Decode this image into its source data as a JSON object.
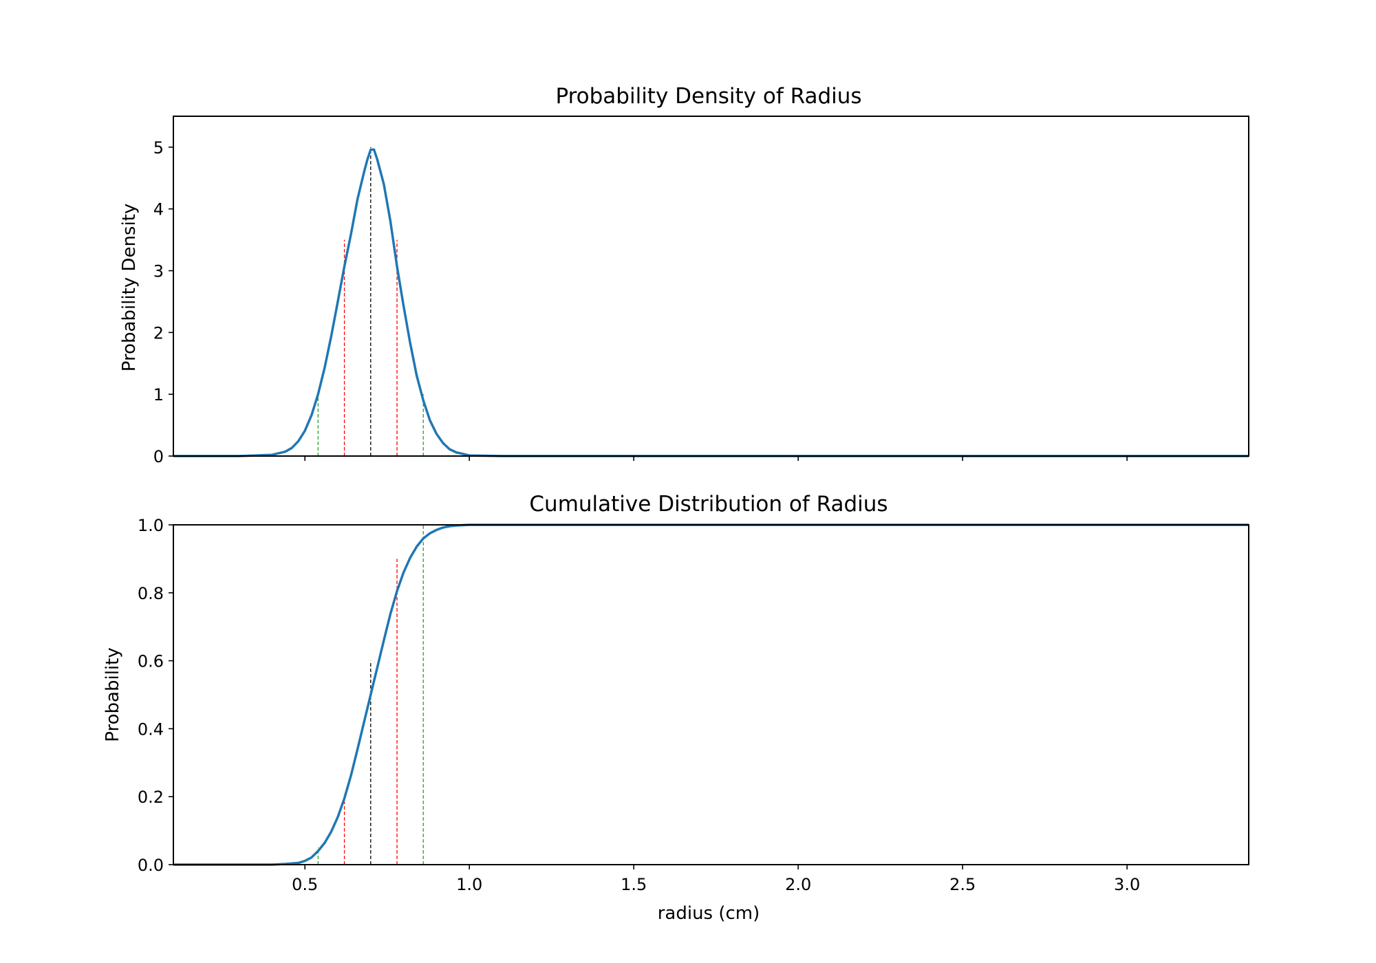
{
  "chart_data": [
    {
      "type": "line",
      "id": "pdf",
      "title": "Probability Density of Radius",
      "xlabel": "",
      "ylabel": "Probability Density",
      "xlim": [
        0.1,
        3.37
      ],
      "ylim": [
        0,
        5.5
      ],
      "xticks": [
        0.5,
        1.0,
        1.5,
        2.0,
        2.5,
        3.0
      ],
      "xtick_labels_visible": false,
      "yticks": [
        0,
        1,
        2,
        3,
        4,
        5
      ],
      "ytick_labels": [
        "0",
        "1",
        "2",
        "3",
        "4",
        "5"
      ],
      "grid": false,
      "series": [
        {
          "color": "#1f77b4",
          "x": [
            0.1,
            0.3,
            0.4,
            0.44,
            0.46,
            0.48,
            0.5,
            0.52,
            0.54,
            0.56,
            0.58,
            0.6,
            0.62,
            0.64,
            0.66,
            0.68,
            0.69,
            0.7,
            0.71,
            0.72,
            0.74,
            0.76,
            0.78,
            0.8,
            0.82,
            0.84,
            0.86,
            0.88,
            0.9,
            0.92,
            0.94,
            0.96,
            1.0,
            1.1,
            3.37
          ],
          "y": [
            0.0,
            0.0,
            0.02,
            0.07,
            0.13,
            0.24,
            0.41,
            0.66,
            1.0,
            1.43,
            1.94,
            2.5,
            3.07,
            3.59,
            4.16,
            4.6,
            4.8,
            4.96,
            4.96,
            4.8,
            4.4,
            3.8,
            3.07,
            2.43,
            1.83,
            1.3,
            0.9,
            0.58,
            0.36,
            0.21,
            0.11,
            0.06,
            0.01,
            0.0,
            0.0
          ]
        }
      ],
      "reference_lines": [
        {
          "x": 0.54,
          "y_top": 1.0,
          "color": "#2ca02c"
        },
        {
          "x": 0.62,
          "y_top": 3.5,
          "color": "#ff0000"
        },
        {
          "x": 0.7,
          "y_top": 5.0,
          "color": "#000000"
        },
        {
          "x": 0.78,
          "y_top": 3.5,
          "color": "#ff0000"
        },
        {
          "x": 0.86,
          "y_top": 1.0,
          "color": "#2ca02c"
        }
      ]
    },
    {
      "type": "line",
      "id": "cdf",
      "title": "Cumulative Distribution of Radius",
      "xlabel": "radius (cm)",
      "ylabel": "Probability",
      "xlim": [
        0.1,
        3.37
      ],
      "ylim": [
        0,
        1.0
      ],
      "xticks": [
        0.5,
        1.0,
        1.5,
        2.0,
        2.5,
        3.0
      ],
      "xtick_labels": [
        "0.5",
        "1.0",
        "1.5",
        "2.0",
        "2.5",
        "3.0"
      ],
      "yticks": [
        0.0,
        0.2,
        0.4,
        0.6,
        0.8,
        1.0
      ],
      "ytick_labels": [
        "0.0",
        "0.2",
        "0.4",
        "0.6",
        "0.8",
        "1.0"
      ],
      "grid": false,
      "series": [
        {
          "color": "#1f77b4",
          "x": [
            0.1,
            0.3,
            0.4,
            0.44,
            0.48,
            0.5,
            0.52,
            0.54,
            0.56,
            0.58,
            0.6,
            0.62,
            0.64,
            0.66,
            0.68,
            0.7,
            0.72,
            0.74,
            0.76,
            0.78,
            0.8,
            0.82,
            0.84,
            0.86,
            0.88,
            0.9,
            0.92,
            0.94,
            0.96,
            1.0,
            1.1,
            3.37
          ],
          "y": [
            0.0,
            0.0,
            0.0,
            0.002,
            0.005,
            0.011,
            0.021,
            0.04,
            0.064,
            0.097,
            0.14,
            0.195,
            0.262,
            0.34,
            0.42,
            0.5,
            0.58,
            0.66,
            0.738,
            0.805,
            0.86,
            0.903,
            0.936,
            0.96,
            0.975,
            0.985,
            0.992,
            0.996,
            0.998,
            1.0,
            1.0,
            1.0
          ]
        }
      ],
      "reference_lines": [
        {
          "x": 0.54,
          "y_top": 0.05,
          "color": "#2ca02c"
        },
        {
          "x": 0.62,
          "y_top": 0.2,
          "color": "#ff0000"
        },
        {
          "x": 0.7,
          "y_top": 0.6,
          "color": "#000000"
        },
        {
          "x": 0.78,
          "y_top": 0.9,
          "color": "#ff0000"
        },
        {
          "x": 0.86,
          "y_top": 1.0,
          "color": "#2ca02c"
        }
      ]
    }
  ]
}
